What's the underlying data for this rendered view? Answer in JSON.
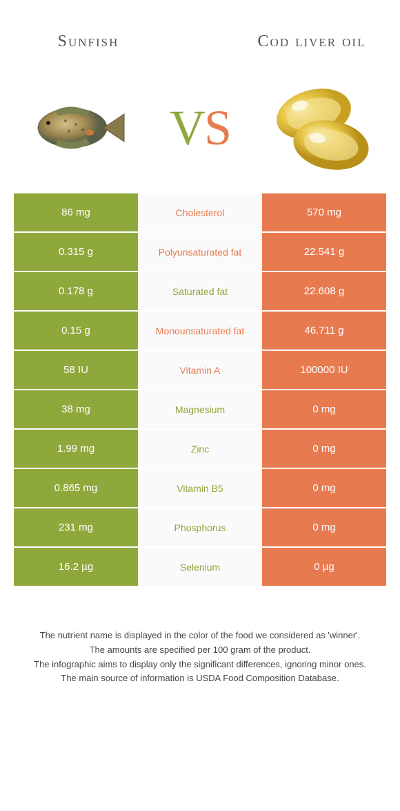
{
  "colors": {
    "left": "#8fa83c",
    "right": "#e87a4f",
    "mid_bg": "#fafafa",
    "text_dark": "#555555"
  },
  "header": {
    "left_title": "Sunfish",
    "right_title": "Cod liver oil"
  },
  "vs": {
    "v": "V",
    "s": "S"
  },
  "rows": [
    {
      "left": "86 mg",
      "label": "Cholesterol",
      "right": "570 mg",
      "winner": "right"
    },
    {
      "left": "0.315 g",
      "label": "Polyunsaturated fat",
      "right": "22.541 g",
      "winner": "right"
    },
    {
      "left": "0.178 g",
      "label": "Saturated fat",
      "right": "22.608 g",
      "winner": "left"
    },
    {
      "left": "0.15 g",
      "label": "Monounsaturated fat",
      "right": "46.711 g",
      "winner": "right"
    },
    {
      "left": "58 IU",
      "label": "Vitamin A",
      "right": "100000 IU",
      "winner": "right"
    },
    {
      "left": "38 mg",
      "label": "Magnesium",
      "right": "0 mg",
      "winner": "left"
    },
    {
      "left": "1.99 mg",
      "label": "Zinc",
      "right": "0 mg",
      "winner": "left"
    },
    {
      "left": "0.865 mg",
      "label": "Vitamin B5",
      "right": "0 mg",
      "winner": "left"
    },
    {
      "left": "231 mg",
      "label": "Phosphorus",
      "right": "0 mg",
      "winner": "left"
    },
    {
      "left": "16.2 µg",
      "label": "Selenium",
      "right": "0 µg",
      "winner": "left"
    }
  ],
  "footnote": {
    "l1": "The nutrient name is displayed in the color of the food we considered as 'winner'.",
    "l2": "The amounts are specified per 100 gram of the product.",
    "l3": "The infographic aims to display only the significant differences, ignoring minor ones.",
    "l4": "The main source of information is USDA Food Composition Database."
  }
}
